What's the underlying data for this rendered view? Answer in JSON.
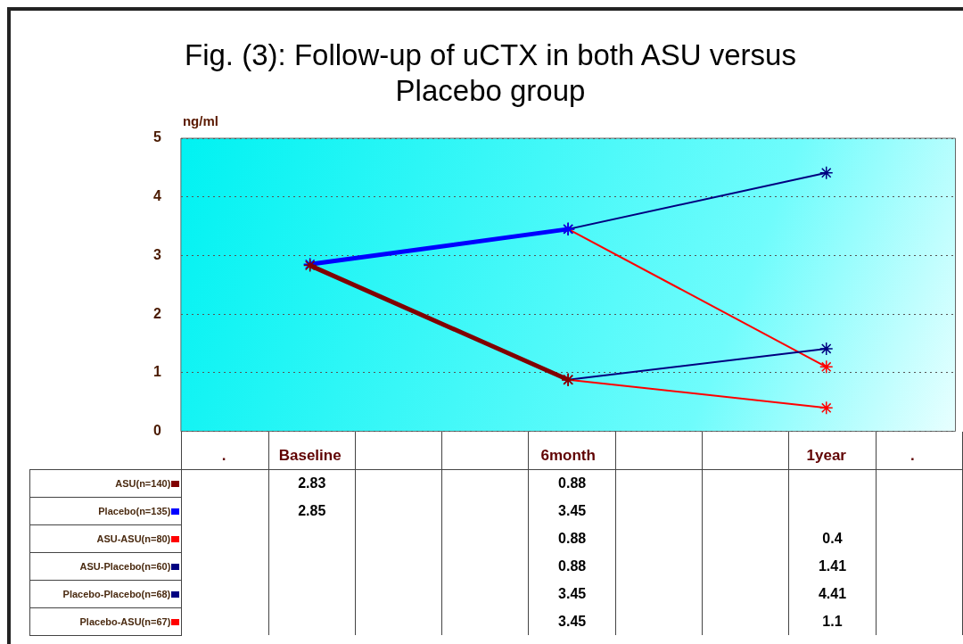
{
  "chart_data": {
    "type": "line",
    "title": "Fig. (3): Follow-up of uCTX in both ASU versus Placebo group",
    "ylabel": "ng/ml",
    "categories": [
      ".",
      "Baseline",
      null,
      null,
      "6month",
      null,
      null,
      "1year",
      "."
    ],
    "series": [
      {
        "name": "ASU(n=140)",
        "color": "#800000",
        "values": [
          null,
          2.83,
          null,
          null,
          0.88,
          null,
          null,
          null,
          null
        ]
      },
      {
        "name": "Placebo(n=135)",
        "color": "#0000ff",
        "values": [
          null,
          2.85,
          null,
          null,
          3.45,
          null,
          null,
          null,
          null
        ]
      },
      {
        "name": "ASU-ASU(n=80)",
        "color": "#ff0000",
        "values": [
          null,
          null,
          null,
          null,
          0.88,
          null,
          null,
          0.4,
          null
        ]
      },
      {
        "name": "ASU-Placebo(n=60)",
        "color": "#000080",
        "values": [
          null,
          null,
          null,
          null,
          0.88,
          null,
          null,
          1.41,
          null
        ]
      },
      {
        "name": "Placebo-Placebo(n=68)",
        "color": "#000080",
        "values": [
          null,
          null,
          null,
          null,
          3.45,
          null,
          null,
          4.41,
          null
        ]
      },
      {
        "name": "Placebo-ASU(n=67)",
        "color": "#ff0000",
        "values": [
          null,
          null,
          null,
          null,
          3.45,
          null,
          null,
          1.1,
          null
        ]
      }
    ],
    "ylim": [
      0,
      5
    ],
    "yticks": [
      0,
      1,
      2,
      3,
      4,
      5
    ],
    "grid": "y",
    "legend": "bottom left",
    "marker": "cross",
    "line_style": "solid",
    "data_labels": true
  }
}
